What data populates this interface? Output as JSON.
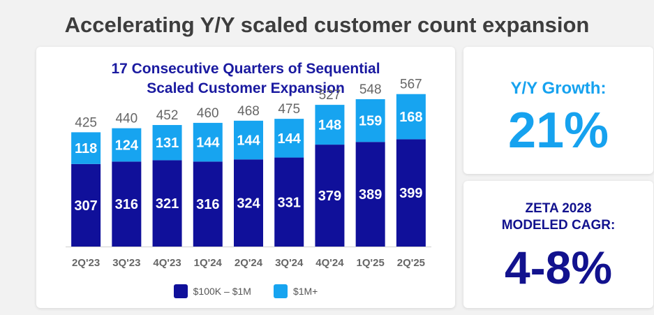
{
  "page_title": "Accelerating Y/Y scaled customer count expansion",
  "chart_data": {
    "type": "bar",
    "stacked": true,
    "title_line1": "17 Consecutive Quarters of Sequential",
    "title_line2": "Scaled Customer Expansion",
    "categories": [
      "2Q'23",
      "3Q'23",
      "4Q'23",
      "1Q'24",
      "2Q'24",
      "3Q'24",
      "4Q'24",
      "1Q'25",
      "2Q'25"
    ],
    "series": [
      {
        "name": "$100K – $1M",
        "color": "#10109a",
        "values": [
          307,
          316,
          321,
          316,
          324,
          331,
          379,
          389,
          399
        ]
      },
      {
        "name": "$1M+",
        "color": "#17a4f0",
        "values": [
          118,
          124,
          131,
          144,
          144,
          144,
          148,
          159,
          168
        ]
      }
    ],
    "totals": [
      425,
      440,
      452,
      460,
      468,
      475,
      527,
      548,
      567
    ],
    "ylim": [
      0,
      600
    ],
    "grid": false,
    "legend_position": "bottom"
  },
  "growth": {
    "label": "Y/Y Growth:",
    "value": "21%"
  },
  "cagr": {
    "label_line1": "ZETA 2028",
    "label_line2": "MODELED CAGR:",
    "value": "4-8%"
  }
}
